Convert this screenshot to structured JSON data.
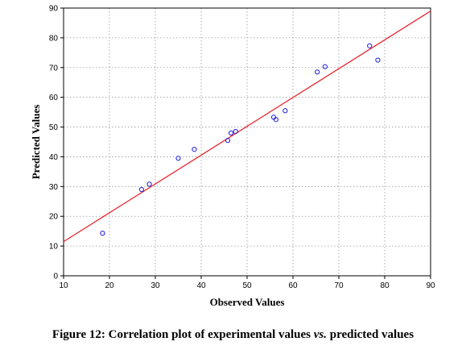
{
  "caption": {
    "prefix": "Figure 12: Correlation plot of experimental values ",
    "emphasis": "vs.",
    "suffix": " predicted values"
  },
  "colors": {
    "point": "#1a1adc",
    "fit_line": "#e8202a",
    "grid": "#9a9a9a",
    "axis": "#000000"
  },
  "chart_data": {
    "type": "scatter",
    "title": "",
    "xlabel": "Observed Values",
    "ylabel": "Predicted Values",
    "xlim": [
      10,
      90
    ],
    "ylim": [
      0,
      90
    ],
    "x_ticks": [
      10,
      20,
      30,
      40,
      50,
      60,
      70,
      80,
      90
    ],
    "y_ticks": [
      0,
      10,
      20,
      30,
      40,
      50,
      60,
      70,
      80,
      90
    ],
    "grid": true,
    "points": [
      {
        "x": 18.5,
        "y": 14.3
      },
      {
        "x": 27.0,
        "y": 29.0
      },
      {
        "x": 28.7,
        "y": 30.8
      },
      {
        "x": 35.0,
        "y": 39.5
      },
      {
        "x": 38.5,
        "y": 42.5
      },
      {
        "x": 45.8,
        "y": 45.5
      },
      {
        "x": 46.5,
        "y": 48.0
      },
      {
        "x": 47.5,
        "y": 48.5
      },
      {
        "x": 55.8,
        "y": 53.3
      },
      {
        "x": 56.3,
        "y": 52.5
      },
      {
        "x": 58.3,
        "y": 55.5
      },
      {
        "x": 65.3,
        "y": 68.5
      },
      {
        "x": 67.0,
        "y": 70.3
      },
      {
        "x": 76.7,
        "y": 77.3
      },
      {
        "x": 78.5,
        "y": 72.5
      }
    ],
    "fit_line": [
      {
        "x": 10,
        "y": 11.5
      },
      {
        "x": 90,
        "y": 89.0
      }
    ]
  }
}
